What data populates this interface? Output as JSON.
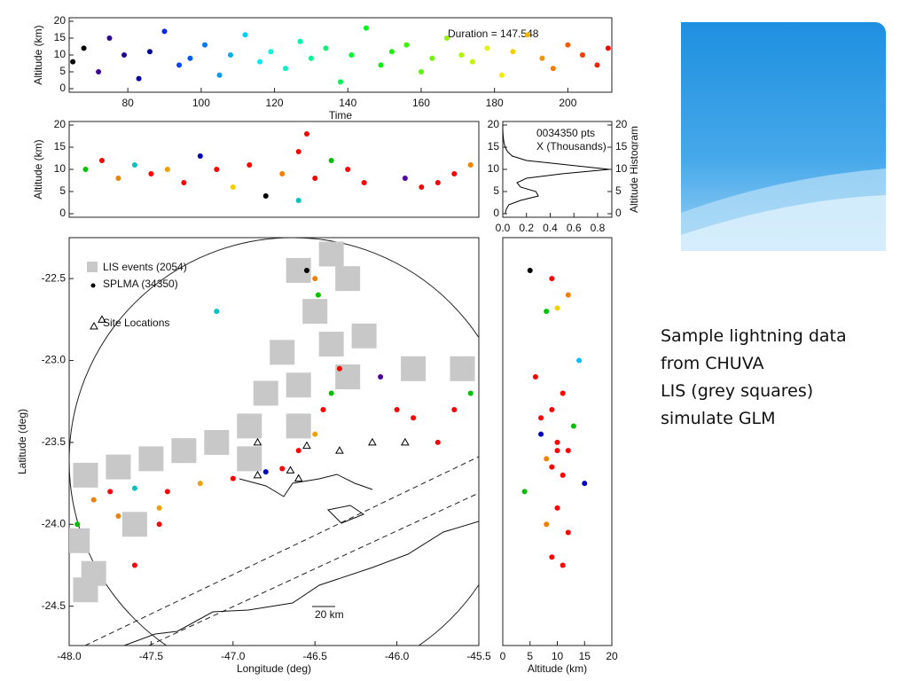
{
  "slide_text": [
    "Sample lightning data",
    "from CHUVA",
    "LIS (grey squares)",
    "simulate GLM"
  ],
  "chart_data": [
    {
      "type": "scatter",
      "xlabel": "Time",
      "ylabel": "Altitude (km)",
      "annotations": [
        "Duration = 147.548"
      ],
      "colormap": "rainbow",
      "xlim": [
        64,
        212
      ],
      "ylim": [
        0,
        20
      ],
      "xticks": [
        80,
        100,
        120,
        140,
        160,
        180,
        200
      ],
      "yticks": [
        0,
        5,
        10,
        15,
        20
      ],
      "x": [
        65,
        68,
        72,
        75,
        79,
        83,
        86,
        90,
        94,
        97,
        101,
        105,
        108,
        112,
        116,
        119,
        123,
        127,
        130,
        134,
        138,
        141,
        145,
        149,
        152,
        156,
        160,
        163,
        167,
        171,
        174,
        178,
        182,
        185,
        189,
        193,
        196,
        200,
        204,
        208,
        211
      ],
      "y": [
        8,
        12,
        5,
        15,
        10,
        3,
        11,
        17,
        7,
        9,
        13,
        4,
        10,
        16,
        8,
        11,
        6,
        14,
        9,
        12,
        2,
        10,
        18,
        7,
        11,
        13,
        5,
        9,
        15,
        10,
        8,
        12,
        4,
        11,
        16,
        9,
        6,
        13,
        10,
        7,
        12
      ]
    },
    {
      "type": "scatter",
      "ylabel": "Altitude (km)",
      "xlim": [
        -48,
        -45.5
      ],
      "ylim": [
        0,
        20
      ],
      "yticks": [
        0,
        5,
        10,
        15,
        20
      ],
      "x": [
        -47.9,
        -47.8,
        -47.7,
        -47.6,
        -47.5,
        -47.4,
        -47.3,
        -47.2,
        -47.1,
        -47.0,
        -46.9,
        -46.8,
        -46.7,
        -46.6,
        -46.6,
        -46.55,
        -46.5,
        -46.4,
        -46.3,
        -46.2,
        -45.95,
        -45.85,
        -45.75,
        -45.65,
        -45.55
      ],
      "y": [
        10,
        12,
        8,
        11,
        9,
        10,
        7,
        13,
        10,
        6,
        11,
        4,
        9,
        14,
        3,
        18,
        8,
        12,
        10,
        7,
        8,
        6,
        7,
        9,
        11
      ],
      "colors": [
        "#00c000",
        "#ff0000",
        "#f08000",
        "#00c0c0",
        "#ff0000",
        "#f0a000",
        "#ff0000",
        "#0000c0",
        "#ff0000",
        "#f0d000",
        "#ff0000",
        "#000000",
        "#f08000",
        "#ff0000",
        "#00c0c0",
        "#ff0000",
        "#ff0000",
        "#00c000",
        "#ff0000",
        "#ff0000",
        "#5000a0",
        "#ff0000",
        "#ff0000",
        "#ff0000",
        "#f08000"
      ]
    },
    {
      "type": "line",
      "y2label": "Altitude Histogram",
      "annotations": [
        "0034350 pts",
        "X (Thousands)"
      ],
      "color": "#000000",
      "xlim": [
        0,
        0.92
      ],
      "ylim": [
        0,
        20
      ],
      "y2lim": [
        0,
        20
      ],
      "xticks": [
        {
          "value": 0,
          "label": "0.0"
        },
        0.2,
        0.4,
        0.6,
        0.8
      ],
      "yticks": [
        0,
        5,
        10,
        15,
        20
      ],
      "y2ticks": [
        0,
        5,
        10,
        15,
        20
      ],
      "x": [
        0.02,
        0.03,
        0.05,
        0.15,
        0.3,
        0.28,
        0.15,
        0.12,
        0.2,
        0.5,
        0.9,
        0.55,
        0.2,
        0.08,
        0.04,
        0.02,
        0.01,
        0.005,
        0.002,
        0,
        0
      ],
      "y": [
        0,
        1,
        2,
        3,
        4,
        5,
        6,
        7,
        8,
        9,
        10,
        11,
        12,
        13,
        14,
        15,
        16,
        17,
        18,
        19,
        20
      ]
    },
    {
      "type": "map",
      "xlabel": "Longitude (deg)",
      "ylabel": "Latitude (deg)",
      "annotations": [
        "20 km"
      ],
      "xlim": [
        -48,
        -45.5
      ],
      "ylim": [
        -24.74,
        -22.25
      ],
      "xticks": [
        {
          "value": -48,
          "label": "-48.0"
        },
        -47.5,
        {
          "value": -47,
          "label": "-47.0"
        },
        -46.5,
        {
          "value": -46,
          "label": "-46.0"
        },
        -45.5
      ],
      "yticks": [
        -22.5,
        {
          "value": -23,
          "label": "-23.0"
        },
        -23.5,
        {
          "value": -24,
          "label": "-24.0"
        },
        -24.5
      ],
      "series": [
        {
          "name": "LIS events (2054)",
          "marker": "square",
          "color": "#c8c8c8",
          "x": [
            -46.6,
            -46.4,
            -46.3,
            -46.5,
            -46.7,
            -46.4,
            -46.2,
            -46.3,
            -46.6,
            -46.8,
            -46.9,
            -47.1,
            -47.3,
            -47.5,
            -47.7,
            -47.9,
            -47.95,
            -47.85,
            -47.9,
            -45.9,
            -45.6,
            -47.6,
            -46.9,
            -46.6
          ],
          "y": [
            -22.45,
            -22.35,
            -22.5,
            -22.7,
            -22.95,
            -22.9,
            -22.85,
            -23.1,
            -23.15,
            -23.2,
            -23.4,
            -23.5,
            -23.55,
            -23.6,
            -23.65,
            -23.7,
            -24.1,
            -24.3,
            -24.4,
            -23.05,
            -23.05,
            -24.0,
            -23.6,
            -23.4
          ]
        },
        {
          "name": "SPLMA (34350)",
          "marker": "dot",
          "color": "#000000",
          "x": [
            -47.95,
            -47.85,
            -47.75,
            -47.6,
            -47.4,
            -47.2,
            -47.0,
            -46.8,
            -46.7,
            -46.6,
            -46.5,
            -46.45,
            -46.4,
            -46.35,
            -46.1,
            -46.0,
            -45.9,
            -45.75,
            -45.65,
            -45.55,
            -46.5,
            -46.48,
            -47.1,
            -47.7,
            -47.45,
            -47.6,
            -47.45,
            -46.55
          ],
          "y": [
            -24.0,
            -23.85,
            -23.8,
            -23.78,
            -23.8,
            -23.75,
            -23.72,
            -23.68,
            -23.66,
            -23.55,
            -23.45,
            -23.3,
            -23.2,
            -23.05,
            -23.1,
            -23.3,
            -23.35,
            -23.5,
            -23.3,
            -23.2,
            -22.5,
            -22.6,
            -22.7,
            -23.95,
            -24.0,
            -24.25,
            -23.9,
            -22.45
          ],
          "colors": [
            "#00c000",
            "#f08000",
            "#ff0000",
            "#00c0c0",
            "#ff0000",
            "#f0a000",
            "#ff0000",
            "#0000c0",
            "#ff0000",
            "#ff0000",
            "#f0a000",
            "#ff0000",
            "#00c000",
            "#ff0000",
            "#5000a0",
            "#ff0000",
            "#ff0000",
            "#ff0000",
            "#ff0000",
            "#00c000",
            "#f08000",
            "#00c000",
            "#00c0c0",
            "#f08000",
            "#ff0000",
            "#ff0000",
            "#f0a000",
            "#000000"
          ]
        },
        {
          "name": "Site Locations",
          "marker": "triangle",
          "color": "#000000",
          "x": [
            -46.85,
            -46.55,
            -46.35,
            -46.15,
            -45.95,
            -46.65,
            -46.85,
            -46.6,
            -47.8
          ],
          "y": [
            -23.5,
            -23.52,
            -23.55,
            -23.5,
            -23.5,
            -23.67,
            -23.7,
            -23.72,
            -22.75
          ]
        }
      ]
    },
    {
      "type": "scatter",
      "xlabel": "Altitude (km)",
      "xlim": [
        0,
        20
      ],
      "ylim": [
        -24.74,
        -22.25
      ],
      "xticks": [
        0,
        5,
        10,
        15,
        20
      ],
      "x": [
        5,
        9,
        12,
        8,
        10,
        14,
        6,
        11,
        9,
        13,
        7,
        10,
        12,
        8,
        9,
        11,
        4,
        15,
        10,
        8,
        12,
        9,
        11,
        7,
        10
      ],
      "y": [
        -22.45,
        -22.5,
        -22.6,
        -22.7,
        -22.68,
        -23.0,
        -23.1,
        -23.2,
        -23.3,
        -23.4,
        -23.45,
        -23.5,
        -23.55,
        -23.6,
        -23.65,
        -23.7,
        -23.8,
        -23.75,
        -23.9,
        -24.0,
        -24.05,
        -24.2,
        -24.25,
        -23.35,
        -23.55
      ],
      "colors": [
        "#000000",
        "#ff0000",
        "#f08000",
        "#00c000",
        "#f0d000",
        "#00c0ff",
        "#ff0000",
        "#ff0000",
        "#ff0000",
        "#00c000",
        "#0000c0",
        "#ff0000",
        "#ff0000",
        "#f08000",
        "#ff0000",
        "#ff0000",
        "#00c000",
        "#0000c0",
        "#ff0000",
        "#f08000",
        "#ff0000",
        "#ff0000",
        "#ff0000",
        "#ff0000",
        "#ff0000"
      ]
    }
  ]
}
